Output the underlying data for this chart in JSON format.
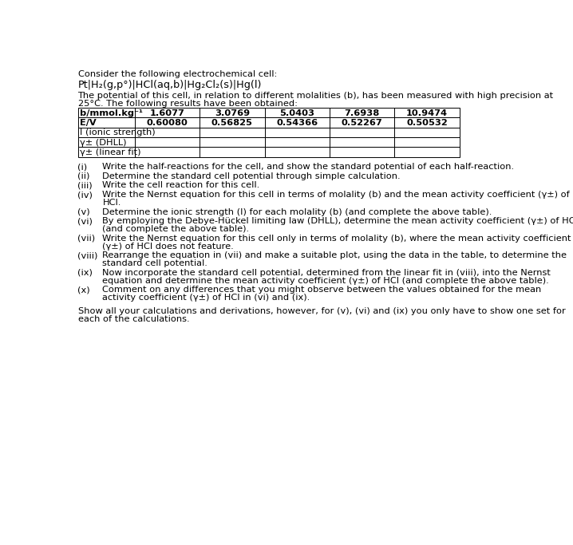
{
  "title_line1": "Consider the following electrochemical cell:",
  "cell_notation": "Pt|H₂(g,p°)|HCl(aq,b)|Hg₂Cl₂(s)|Hg(l)",
  "intro_text_line1": "The potential of this cell, in relation to different molalities (b), has been measured with high precision at",
  "intro_text_line2": "25°C. The following results have been obtained:",
  "table": {
    "row_labels": [
      "b/mmol.kg⁻¹",
      "E/V",
      "I (ionic strength)",
      "γ± (DHLL)",
      "γ± (linear fit)"
    ],
    "col_values": [
      [
        "1.6077",
        "0.60080",
        "",
        "",
        ""
      ],
      [
        "3.0769",
        "0.56825",
        "",
        "",
        ""
      ],
      [
        "5.0403",
        "0.54366",
        "",
        "",
        ""
      ],
      [
        "7.6938",
        "0.52267",
        "",
        "",
        ""
      ],
      [
        "10.9474",
        "0.50532",
        "",
        "",
        ""
      ]
    ]
  },
  "questions": [
    [
      "(i)",
      "Write the half-reactions for the cell, and show the standard potential of each half-reaction."
    ],
    [
      "(ii)",
      "Determine the standard cell potential through simple calculation."
    ],
    [
      "(iii)",
      "Write the cell reaction for this cell."
    ],
    [
      "(iv)",
      "Write the Nernst equation for this cell in terms of molality (b) and the mean activity coefficient (γ±) of",
      "HCl."
    ],
    [
      "(v)",
      "Determine the ionic strength (I) for each molality (b) (and complete the above table)."
    ],
    [
      "(vi)",
      "By employing the Debye-Hückel limiting law (DHLL), determine the mean activity coefficient (γ±) of HCl",
      "(and complete the above table)."
    ],
    [
      "(vii)",
      "Write the Nernst equation for this cell only in terms of molality (b), where the mean activity coefficient",
      "(γ±) of HCl does not feature."
    ],
    [
      "(viii)",
      "Rearrange the equation in (vii) and make a suitable plot, using the data in the table, to determine the",
      "standard cell potential."
    ],
    [
      "(ix)",
      "Now incorporate the standard cell potential, determined from the linear fit in (viii), into the Nernst",
      "equation and determine the mean activity coefficient (γ±) of HCl (and complete the above table)."
    ],
    [
      "(x)",
      "Comment on any differences that you might observe between the values obtained for the mean",
      "activity coefficient (γ±) of HCl in (vi) and (ix)."
    ]
  ],
  "footer_line1": "Show all your calculations and derivations, however, for (v), (vi) and (ix) you only have to show one set for",
  "footer_line2": "each of the calculations.",
  "bg_color": "#ffffff",
  "fs": 8.2,
  "fs_cell_title": 8.2,
  "fs_cell_notation": 9.2
}
